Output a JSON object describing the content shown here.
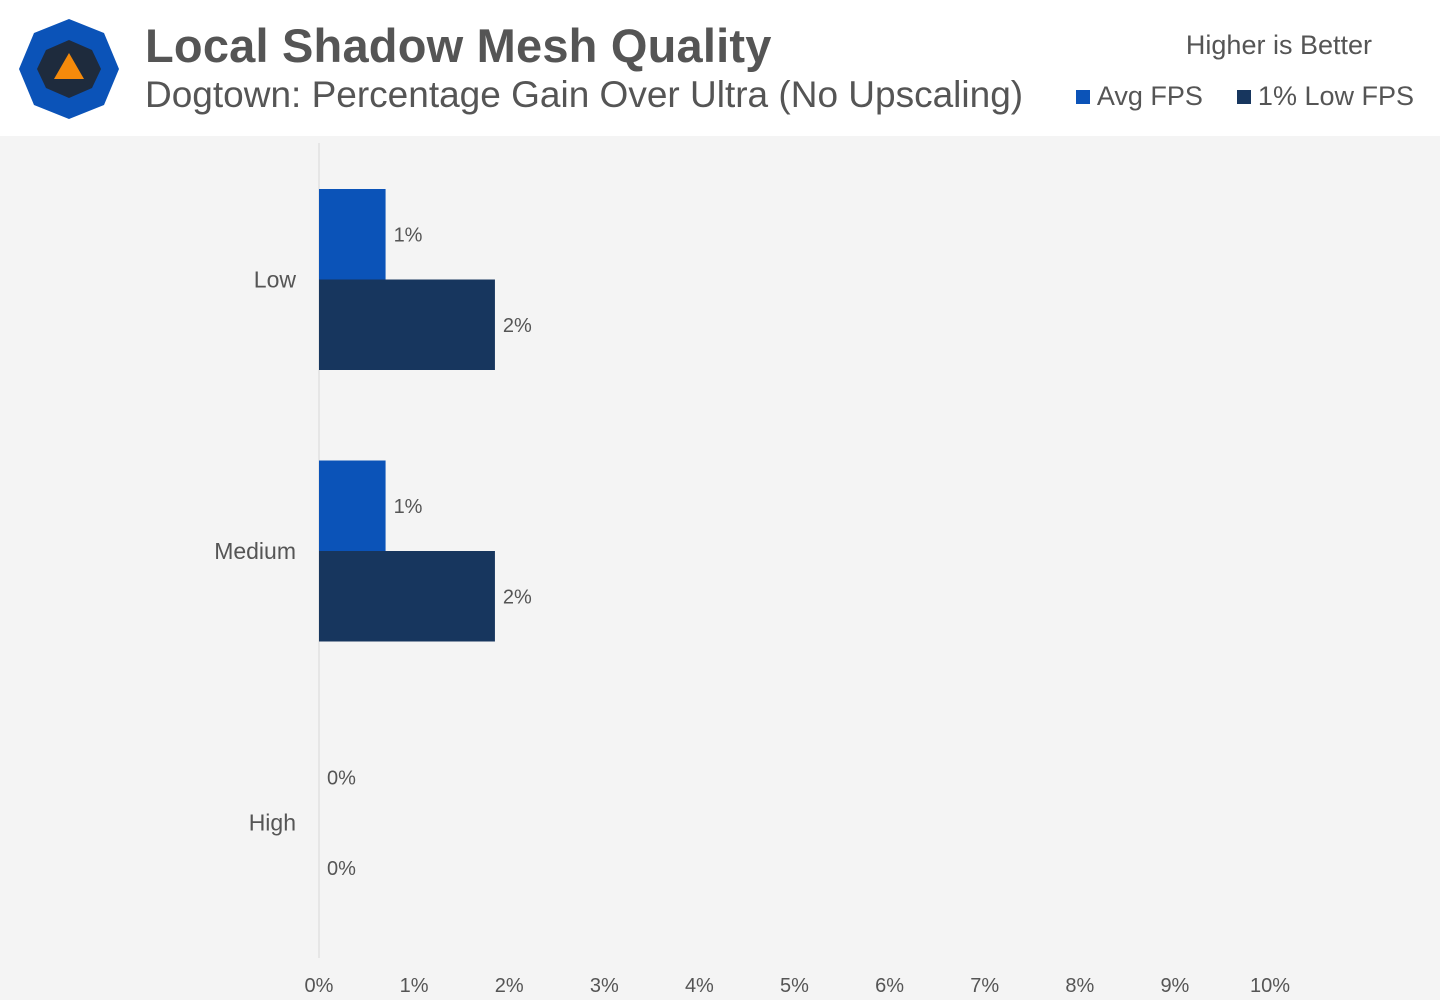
{
  "header": {
    "title": "Local Shadow Mesh Quality",
    "subtitle": "Dogtown: Percentage Gain Over Ultra (No Upscaling)",
    "note": "Higher is Better",
    "logo_icon": "techspot-logo-icon"
  },
  "colors": {
    "avg": "#0b53b8",
    "low": "#17365e",
    "axis": "#d9d9d9",
    "text": "#555555",
    "logo_outer": "#0b53b8",
    "logo_inner": "#1e2b3d",
    "logo_triangle": "#f58a0b"
  },
  "chart_data": {
    "type": "bar",
    "orientation": "horizontal",
    "categories": [
      "Low",
      "Medium",
      "High"
    ],
    "series": [
      {
        "name": "Avg FPS",
        "values": [
          0.7,
          0.7,
          0
        ],
        "labels": [
          "1%",
          "1%",
          "0%"
        ]
      },
      {
        "name": "1% Low FPS",
        "values": [
          1.85,
          1.85,
          0
        ],
        "labels": [
          "2%",
          "2%",
          "0%"
        ]
      }
    ],
    "xlim": [
      0,
      10
    ],
    "x_ticks": [
      "0%",
      "1%",
      "2%",
      "3%",
      "4%",
      "5%",
      "6%",
      "7%",
      "8%",
      "9%",
      "10%"
    ],
    "legend_position": "top-right"
  }
}
